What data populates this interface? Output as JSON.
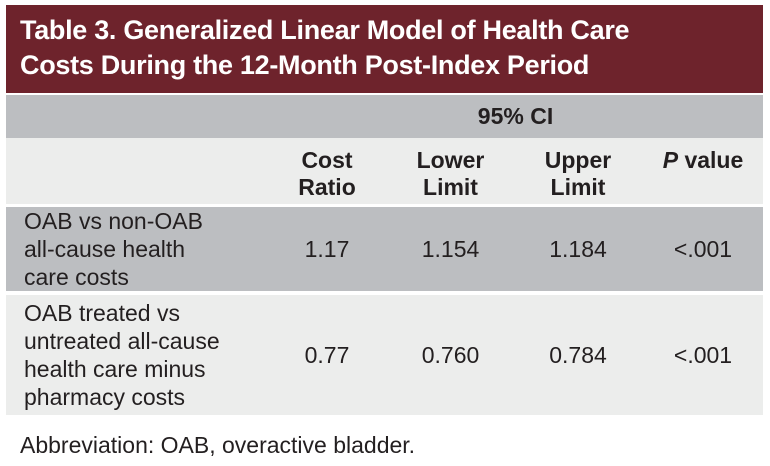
{
  "title": {
    "line1": "Table 3. Generalized Linear Model of Health Care",
    "line2": "Costs During the 12-Month Post-Index Period"
  },
  "table": {
    "ci_header": "95% CI",
    "columns": {
      "cost_ratio": {
        "line1": "Cost",
        "line2": "Ratio"
      },
      "lower_limit": {
        "line1": "Lower",
        "line2": "Limit"
      },
      "upper_limit": {
        "line1": "Upper",
        "line2": "Limit"
      },
      "p_value": {
        "symbol": "P",
        "rest": " value"
      }
    },
    "rows": [
      {
        "label": "OAB vs non-OAB all-cause health care costs",
        "cost_ratio": "1.17",
        "lower_limit": "1.154",
        "upper_limit": "1.184",
        "p_value": "<.001"
      },
      {
        "label": "OAB treated vs untreated all-cause health care minus pharmacy costs",
        "cost_ratio": "0.77",
        "lower_limit": "0.760",
        "upper_limit": "0.784",
        "p_value": "<.001"
      }
    ]
  },
  "footer": {
    "abbreviation": "Abbreviation: OAB, overactive bladder."
  },
  "colors": {
    "title_bar_bg": "#6e232c",
    "title_text": "#ffffff",
    "gray_row_bg": "#bcbec1",
    "light_row_bg": "#ecedec",
    "text": "#231f20"
  }
}
